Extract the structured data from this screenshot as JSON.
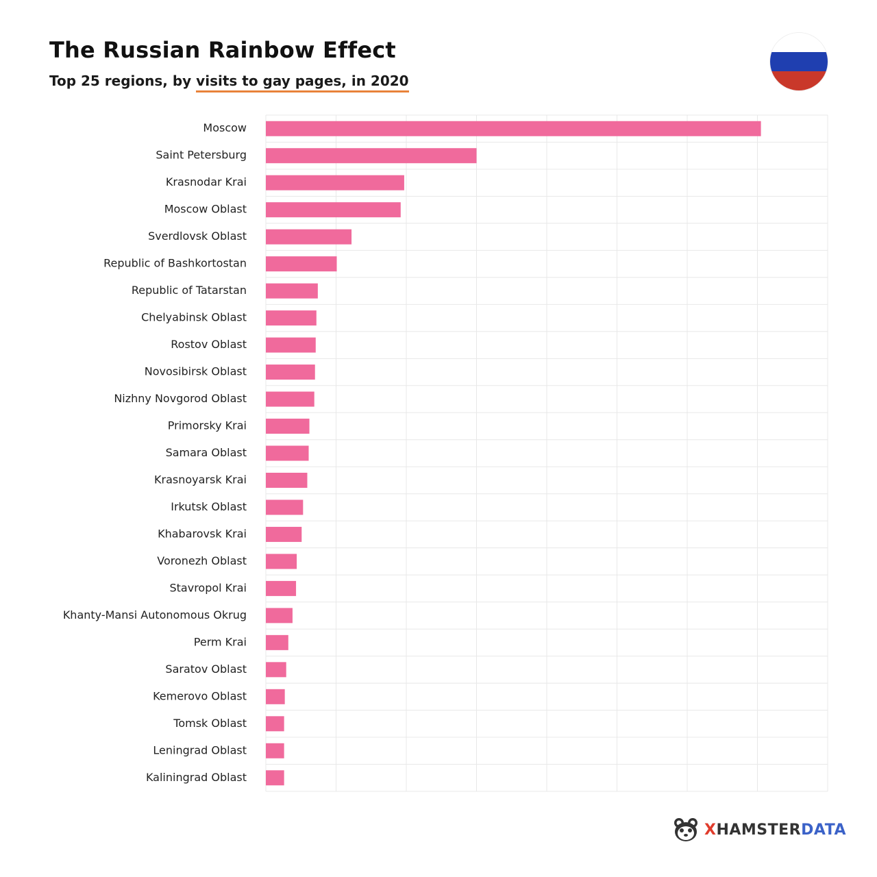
{
  "header": {
    "title": "The Russian Rainbow Effect",
    "subtitle_prefix": "Top 25 regions, by ",
    "subtitle_highlight": "visits to gay pages, in 2020"
  },
  "flag": {
    "icon": "russia-flag-icon",
    "colors": [
      "#ffffff",
      "#1f3fb0",
      "#c9382a"
    ]
  },
  "brand": {
    "icon": "hamster-logo-icon",
    "x": "X",
    "hamster": "HAMSTER",
    "data": "DATA"
  },
  "colors": {
    "bar": "#f06a9c",
    "grid": "#e8e8e8",
    "accent_underline": "#e8823a"
  },
  "chart_data": {
    "type": "bar",
    "orientation": "horizontal",
    "title": "The Russian Rainbow Effect",
    "subtitle": "Top 25 regions, by visits to gay pages, in 2020",
    "categories": [
      "Moscow",
      "Saint Petersburg",
      "Krasnodar Krai",
      "Moscow Oblast",
      "Sverdlovsk Oblast",
      "Republic of Bashkortostan",
      "Republic of Tatarstan",
      "Chelyabinsk Oblast",
      "Rostov Oblast",
      "Novosibirsk Oblast",
      "Nizhny Novgorod Oblast",
      "Primorsky Krai",
      "Samara Oblast",
      "Krasnoyarsk Krai",
      "Irkutsk Oblast",
      "Khabarovsk Krai",
      "Voronezh Oblast",
      "Stavropol Krai",
      "Khanty-Mansi Autonomous Okrug",
      "Perm Krai",
      "Saratov Oblast",
      "Kemerovo Oblast",
      "Tomsk Oblast",
      "Leningrad Oblast",
      "Kaliningrad Oblast"
    ],
    "values": [
      7.05,
      3.0,
      1.97,
      1.92,
      1.22,
      1.01,
      0.74,
      0.72,
      0.71,
      0.7,
      0.69,
      0.62,
      0.61,
      0.59,
      0.53,
      0.51,
      0.44,
      0.43,
      0.38,
      0.32,
      0.29,
      0.27,
      0.26,
      0.26,
      0.26
    ],
    "xlim": [
      0,
      8
    ],
    "grid": true,
    "xlabel": "",
    "ylabel": ""
  }
}
